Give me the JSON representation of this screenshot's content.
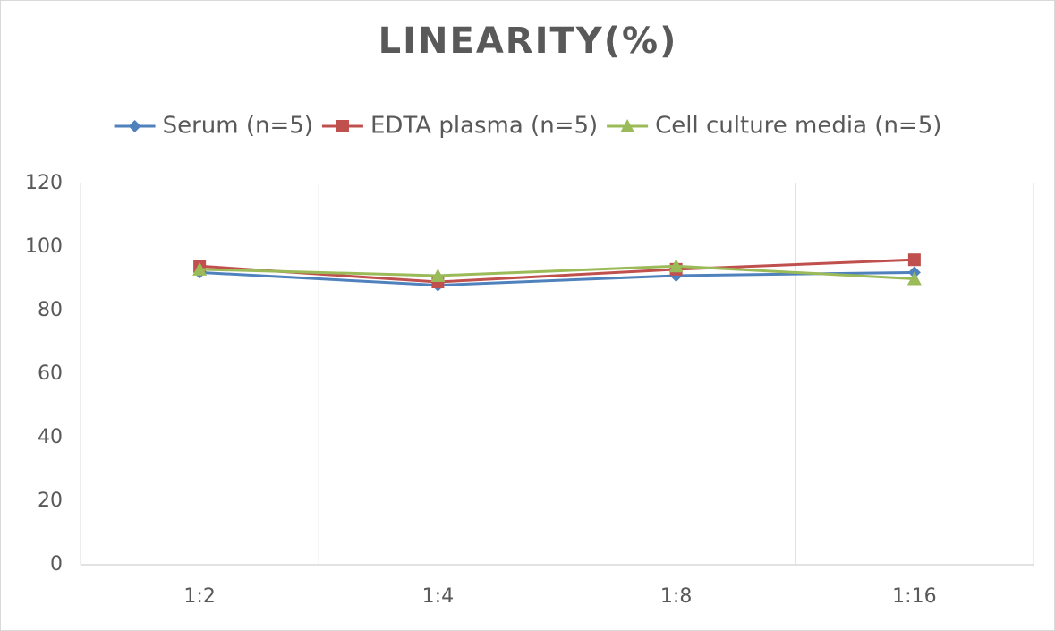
{
  "chart_data": {
    "type": "line",
    "title": "LINEARITY(%)",
    "categories": [
      "1:2",
      "1:4",
      "1:8",
      "1:16"
    ],
    "series": [
      {
        "name": "Serum (n=5)",
        "color": "#4f81bd",
        "marker": "diamond",
        "values": [
          92,
          88,
          91,
          92
        ]
      },
      {
        "name": "EDTA plasma (n=5)",
        "color": "#c0504d",
        "marker": "square",
        "values": [
          94,
          89,
          93,
          96
        ]
      },
      {
        "name": "Cell culture media (n=5)",
        "color": "#9bbb59",
        "marker": "triangle",
        "values": [
          93,
          91,
          94,
          90
        ]
      }
    ],
    "ylim": [
      0,
      120
    ],
    "yticks": [
      0,
      20,
      40,
      60,
      80,
      100,
      120
    ],
    "legend": "top"
  }
}
